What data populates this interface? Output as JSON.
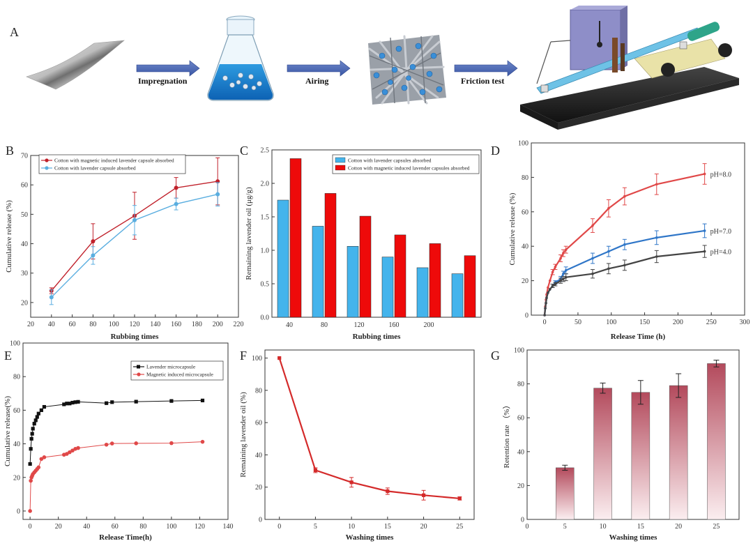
{
  "panel_a": {
    "letter": "A",
    "steps": [
      "Impregnation",
      "Airing",
      "Friction test"
    ],
    "icons": [
      "cotton-fabric-icon",
      "conical-flask-icon",
      "fiber-network-icon",
      "friction-tester-icon"
    ]
  },
  "chart_data": [
    {
      "id": "B",
      "letter": "B",
      "type": "line",
      "xlabel": "Rubbing times",
      "ylabel": "Cumulative release (%)",
      "xlim": [
        20,
        220
      ],
      "ylim": [
        15,
        70
      ],
      "xticks": [
        20,
        40,
        60,
        80,
        100,
        120,
        140,
        160,
        180,
        200,
        220
      ],
      "yticks": [
        20,
        30,
        40,
        50,
        60,
        70
      ],
      "legend_position": "top-left",
      "series": [
        {
          "name": "Cotton with magnetic induced lavender capsule absorbed",
          "color": "#c0202a",
          "marker": "circle",
          "x": [
            40,
            80,
            120,
            160,
            200
          ],
          "y": [
            24,
            40.8,
            49.5,
            59,
            61.2
          ],
          "err": [
            1,
            6,
            8,
            3.5,
            8
          ]
        },
        {
          "name": "Cotton with lavender capsule absorbed",
          "color": "#5aaee0",
          "marker": "circle",
          "x": [
            40,
            80,
            120,
            160,
            200
          ],
          "y": [
            21.8,
            36,
            48,
            53.5,
            56.8
          ],
          "err": [
            2.5,
            3,
            5,
            2,
            4
          ]
        }
      ]
    },
    {
      "id": "C",
      "letter": "C",
      "type": "bar",
      "xlabel": "Rubbing times",
      "ylabel": "Remaining lavender oil (μg/g)",
      "ylim": [
        0,
        2.5
      ],
      "categories": [
        "40",
        "80",
        "120",
        "160",
        "200",
        ""
      ],
      "yticks": [
        0.0,
        0.5,
        1.0,
        1.5,
        2.0,
        2.5
      ],
      "legend_position": "top-right",
      "series": [
        {
          "name": "Cotton with lavender capsules absorbed",
          "color": "#44b4ec",
          "values": [
            1.75,
            1.36,
            1.06,
            0.9,
            0.74,
            0.65
          ]
        },
        {
          "name": "Cotton with magnetic induced lavender capsules absorbed",
          "color": "#ee0a0a",
          "values": [
            2.37,
            1.85,
            1.51,
            1.23,
            1.1,
            0.92
          ]
        }
      ]
    },
    {
      "id": "D",
      "letter": "D",
      "type": "line",
      "xlabel": "Release Time (h)",
      "ylabel": "Cumulative release (%)",
      "xlim": [
        -20,
        300
      ],
      "ylim": [
        0,
        100
      ],
      "xticks": [
        0,
        50,
        100,
        150,
        200,
        250,
        300
      ],
      "yticks": [
        0,
        20,
        40,
        60,
        80,
        100
      ],
      "series": [
        {
          "name": "pH=8.0",
          "color": "#e04848",
          "x": [
            0,
            1,
            2,
            3,
            5,
            8,
            12,
            16,
            24,
            28,
            32,
            72,
            96,
            120,
            168,
            240
          ],
          "y": [
            0,
            5,
            9,
            12,
            16,
            20,
            25,
            28,
            33,
            36,
            38,
            52,
            62,
            69,
            76,
            82
          ],
          "err": [
            0,
            0,
            0,
            0,
            0,
            0,
            1.5,
            1.5,
            2,
            2,
            2,
            4,
            5,
            5,
            6,
            6
          ]
        },
        {
          "name": "pH=7.0",
          "color": "#2f76c8",
          "x": [
            0,
            1,
            2,
            3,
            5,
            8,
            12,
            16,
            24,
            28,
            32,
            72,
            96,
            120,
            168,
            240
          ],
          "y": [
            0,
            4,
            7,
            10,
            13,
            15,
            17,
            19,
            21,
            24,
            26,
            33,
            37,
            41,
            45,
            49
          ],
          "err": [
            0,
            0,
            0,
            0,
            0,
            0,
            1,
            1,
            1.5,
            1.5,
            2,
            3,
            3,
            3,
            4,
            4
          ]
        },
        {
          "name": "pH=4.0",
          "color": "#444444",
          "x": [
            0,
            1,
            2,
            3,
            5,
            8,
            12,
            16,
            24,
            28,
            32,
            72,
            96,
            120,
            168,
            240
          ],
          "y": [
            0,
            4,
            7,
            10,
            13,
            15,
            17,
            18,
            20,
            21,
            22,
            24,
            27,
            29,
            34,
            37
          ],
          "err": [
            0,
            0,
            0,
            0,
            0,
            0,
            1,
            1,
            1.5,
            1.5,
            2,
            2.5,
            3,
            3,
            3.5,
            3.5
          ]
        }
      ]
    },
    {
      "id": "E",
      "letter": "E",
      "type": "scatter",
      "xlabel": "Release Time(h)",
      "ylabel": "Cumulative release(%)",
      "xlim": [
        -5,
        140
      ],
      "ylim": [
        -5,
        100
      ],
      "xticks": [
        0,
        20,
        40,
        60,
        80,
        100,
        120,
        140
      ],
      "yticks": [
        0,
        20,
        40,
        60,
        80,
        100
      ],
      "legend_position": "top-right",
      "series": [
        {
          "name": "Lavender microcapsule",
          "color": "#111111",
          "marker": "square",
          "x": [
            0,
            0.5,
            1,
            1.5,
            2,
            3,
            4,
            5,
            6,
            8,
            10,
            24,
            26,
            28,
            30,
            32,
            34,
            54,
            58,
            75,
            100,
            122
          ],
          "y": [
            28,
            37,
            43,
            46,
            49,
            52,
            54,
            56,
            58,
            60,
            62,
            63.5,
            64,
            64,
            64.5,
            64.8,
            65,
            64.2,
            64.8,
            65.1,
            65.5,
            65.8
          ]
        },
        {
          "name": "Magnetic induced microcapsule",
          "color": "#e04848",
          "marker": "circle",
          "x": [
            0,
            0.5,
            1,
            1.5,
            2,
            3,
            4,
            5,
            6,
            8,
            10,
            24,
            26,
            28,
            30,
            32,
            34,
            54,
            58,
            75,
            100,
            122
          ],
          "y": [
            0,
            18,
            20,
            21,
            22,
            23,
            24,
            25,
            26,
            31,
            32,
            33.5,
            34,
            35,
            36,
            37,
            37.5,
            39.5,
            40.2,
            40.3,
            40.4,
            41.2
          ]
        }
      ]
    },
    {
      "id": "F",
      "letter": "F",
      "type": "line",
      "xlabel": "Washing times",
      "ylabel": "Remaining lavender oil (%)",
      "xlim": [
        -2,
        27
      ],
      "ylim": [
        0,
        105
      ],
      "xticks": [
        0,
        5,
        10,
        15,
        20,
        25
      ],
      "yticks": [
        0,
        20,
        40,
        60,
        80,
        100
      ],
      "series": [
        {
          "name": "",
          "color": "#d42a2a",
          "marker": "square",
          "x": [
            0,
            5,
            10,
            15,
            20,
            25
          ],
          "y": [
            100,
            30.5,
            23,
            17.5,
            15,
            13
          ],
          "err": [
            0,
            1.5,
            3,
            2,
            3,
            1
          ]
        }
      ]
    },
    {
      "id": "G",
      "letter": "G",
      "type": "bar",
      "xlabel": "Washing times",
      "ylabel": "Retention rate （%）",
      "xlim": [
        0,
        28
      ],
      "ylim": [
        0,
        100
      ],
      "xticks": [
        0,
        5,
        10,
        15,
        20,
        25
      ],
      "yticks": [
        0,
        20,
        40,
        60,
        80,
        100
      ],
      "categories": [
        "5",
        "10",
        "15",
        "20",
        "25"
      ],
      "x": [
        5,
        10,
        15,
        20,
        25
      ],
      "values": [
        30.5,
        77.5,
        75,
        79,
        92
      ],
      "err": [
        1.5,
        3,
        7,
        7,
        2
      ],
      "color": "#b34a5c"
    }
  ]
}
